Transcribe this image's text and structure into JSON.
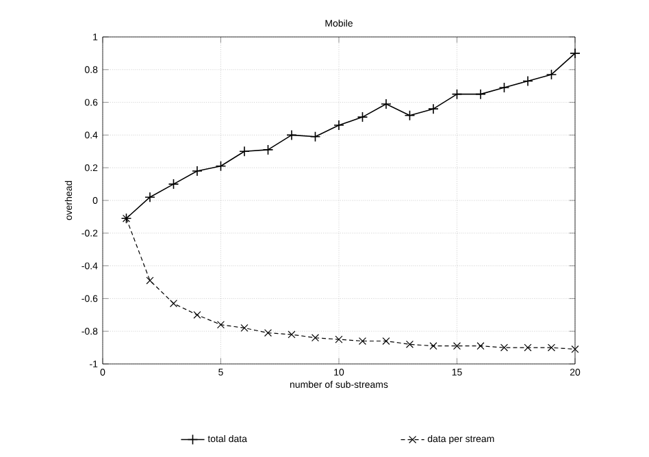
{
  "chart_data": {
    "type": "line",
    "title": "Mobile",
    "xlabel": "number of sub-streams",
    "ylabel": "overhead",
    "x": [
      1,
      2,
      3,
      4,
      5,
      6,
      7,
      8,
      9,
      10,
      11,
      12,
      13,
      14,
      15,
      16,
      17,
      18,
      19,
      20
    ],
    "series": [
      {
        "name": "total data",
        "color": "#000000",
        "marker": "plus",
        "line_style": "solid",
        "values": [
          -0.11,
          0.02,
          0.1,
          0.18,
          0.21,
          0.3,
          0.31,
          0.4,
          0.39,
          0.46,
          0.51,
          0.59,
          0.52,
          0.56,
          0.65,
          0.65,
          0.69,
          0.73,
          0.77,
          0.9
        ]
      },
      {
        "name": "data per stream",
        "color": "#000000",
        "marker": "cross",
        "line_style": "dashed",
        "values": [
          -0.11,
          -0.49,
          -0.63,
          -0.7,
          -0.76,
          -0.78,
          -0.81,
          -0.82,
          -0.84,
          -0.85,
          -0.86,
          -0.86,
          -0.88,
          -0.89,
          -0.89,
          -0.89,
          -0.9,
          -0.9,
          -0.9,
          -0.91
        ]
      }
    ],
    "xlim": [
      0,
      20
    ],
    "ylim": [
      -1,
      1
    ],
    "xticks": [
      0,
      5,
      10,
      15,
      20
    ],
    "yticks": [
      -1,
      -0.8,
      -0.6,
      -0.4,
      -0.2,
      0,
      0.2,
      0.4,
      0.6,
      0.8,
      1
    ],
    "grid": true,
    "legend": "bottom"
  }
}
